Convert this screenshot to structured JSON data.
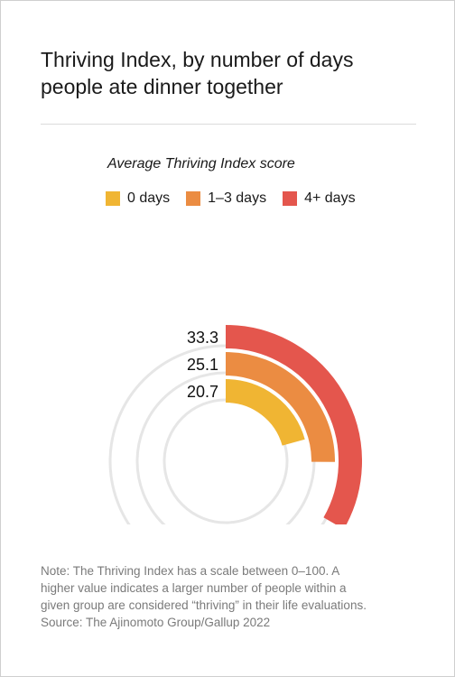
{
  "chart_data": {
    "type": "radial-bar",
    "title_lines": [
      "Thriving Index, by number of days",
      "people ate dinner together"
    ],
    "subtitle": "Average Thriving Index score",
    "scale_max": 100,
    "series": [
      {
        "name": "0 days",
        "value": 20.7,
        "label": "20.7",
        "color": "#f0b533"
      },
      {
        "name": "1–3 days",
        "value": 25.1,
        "label": "25.1",
        "color": "#eb8c42"
      },
      {
        "name": "4+ days",
        "value": 33.3,
        "label": "33.3",
        "color": "#e4564d"
      }
    ],
    "track_color": "#e6e6e6"
  },
  "footnote": {
    "lines": [
      "Note: The Thriving Index has a scale between 0–100. A",
      "higher value indicates a larger number of people within a",
      "given group are considered “thriving” in their life evaluations.",
      "Source: The Ajinomoto Group/Gallup 2022"
    ]
  }
}
